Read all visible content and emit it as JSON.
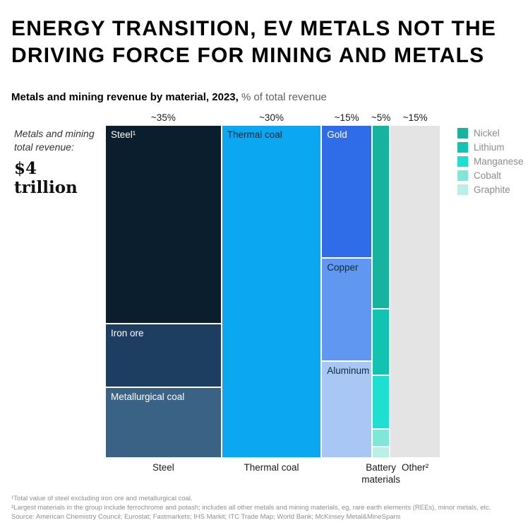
{
  "title": {
    "line1": "ENERGY TRANSITION, EV METALS NOT THE",
    "line2": "DRIVING FORCE FOR MINING AND METALS"
  },
  "subtitle": {
    "bold": "Metals and mining revenue by material, 2023,",
    "rest": " % of total revenue"
  },
  "annotation": {
    "label": "Metals and mining total revenue:",
    "value": "$4 trillion"
  },
  "chart_data": {
    "type": "marimekko",
    "title": "Metals and mining revenue by material, 2023, % of total revenue",
    "total_revenue": "$4 trillion",
    "unit": "% of total revenue",
    "columns": [
      {
        "key": "steel",
        "width_pct": 35,
        "width_label": "~35%",
        "bottom_label": "Steel",
        "segments": [
          {
            "key": "steel",
            "label": "Steel¹",
            "share": 60,
            "color": "#0a1e2e",
            "text_color": "#ffffff"
          },
          {
            "key": "iron-ore",
            "label": "Iron ore",
            "share": 19,
            "color": "#1d3e60",
            "text_color": "#ffffff"
          },
          {
            "key": "metallurgical-coal",
            "label": "Metallurgical coal",
            "share": 21,
            "color": "#3a6285",
            "text_color": "#ffffff"
          }
        ]
      },
      {
        "key": "thermal-coal",
        "width_pct": 30,
        "width_label": "~30%",
        "bottom_label": "Thermal coal",
        "segments": [
          {
            "key": "thermal-coal",
            "label": "Thermal coal",
            "share": 100,
            "color": "#0ba7f1",
            "text_color": "#0e2a3f"
          }
        ]
      },
      {
        "key": "gold-copper-aluminum",
        "width_pct": 15,
        "width_label": "~15%",
        "bottom_label": "",
        "segments": [
          {
            "key": "gold",
            "label": "Gold",
            "share": 40,
            "color": "#2f6ce8",
            "text_color": "#ffffff"
          },
          {
            "key": "copper",
            "label": "Copper",
            "share": 31,
            "color": "#5f97f1",
            "text_color": "#0e2a3f"
          },
          {
            "key": "aluminum",
            "label": "Aluminum",
            "share": 29,
            "color": "#a8c7f4",
            "text_color": "#0e2a3f"
          }
        ]
      },
      {
        "key": "battery-materials",
        "width_pct": 5,
        "width_label": "~5%",
        "bottom_label": "Battery\nmaterials",
        "segments": [
          {
            "key": "nickel",
            "label": "",
            "share": 56,
            "color": "#18b39f",
            "text_color": "#ffffff"
          },
          {
            "key": "lithium",
            "label": "",
            "share": 20,
            "color": "#12c3b2",
            "text_color": "#ffffff"
          },
          {
            "key": "manganese",
            "label": "",
            "share": 16,
            "color": "#1fdfd0",
            "text_color": "#ffffff"
          },
          {
            "key": "cobalt",
            "label": "",
            "share": 5,
            "color": "#7fe6d8",
            "text_color": "#ffffff"
          },
          {
            "key": "graphite",
            "label": "",
            "share": 3,
            "color": "#b9efe6",
            "text_color": "#ffffff"
          }
        ]
      },
      {
        "key": "other",
        "width_pct": 15,
        "width_label": "~15%",
        "bottom_label": "Other²",
        "segments": [
          {
            "key": "other",
            "label": "",
            "share": 100,
            "color": "#e4e4e4",
            "text_color": "#1a1a1a"
          }
        ]
      }
    ],
    "legend": [
      {
        "key": "nickel",
        "label": "Nickel",
        "color": "#18b39f"
      },
      {
        "key": "lithium",
        "label": "Lithium",
        "color": "#12c3b2"
      },
      {
        "key": "manganese",
        "label": "Manganese",
        "color": "#1fdfd0"
      },
      {
        "key": "cobalt",
        "label": "Cobalt",
        "color": "#7fe6d8"
      },
      {
        "key": "graphite",
        "label": "Graphite",
        "color": "#b9efe6"
      }
    ],
    "legend_position": "right"
  },
  "footnotes": {
    "note1": "¹Total value of steel excluding iron ore and metallurgical coal.",
    "note2": "²Largest materials in the group include ferrochrome and potash; includes all other metals and mining materials, eg, rare earth elements (REEs), minor metals, etc.",
    "source": "Source: American Chemistry Council; Eurostat; Fastmarkets; IHS Markit; ITC Trade Map; World Bank; McKinsey Metal&MineSpans"
  }
}
